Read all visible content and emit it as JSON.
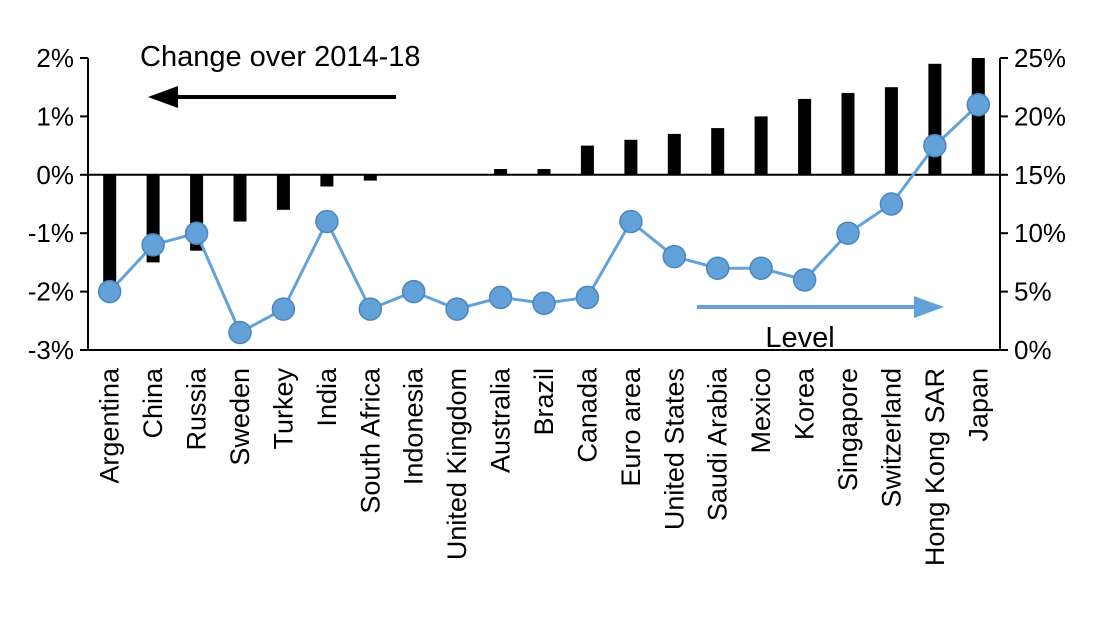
{
  "chart_data": {
    "type": "bar",
    "subtype": "combo-bar-line-dual-axis",
    "title": "",
    "categories": [
      "Argentina",
      "China",
      "Russia",
      "Sweden",
      "Turkey",
      "India",
      "South Africa",
      "Indonesia",
      "United Kingdom",
      "Australia",
      "Brazil",
      "Canada",
      "Euro area",
      "United States",
      "Saudi Arabia",
      "Mexico",
      "Korea",
      "Singapore",
      "Switzerland",
      "Hong Kong SAR",
      "Japan"
    ],
    "series": [
      {
        "name": "Change over 2014-18",
        "type": "bar",
        "axis": "left",
        "color": "#000000",
        "values": [
          -2.0,
          -1.5,
          -1.3,
          -0.8,
          -0.6,
          -0.2,
          -0.1,
          0.0,
          0.0,
          0.1,
          0.1,
          0.5,
          0.6,
          0.7,
          0.8,
          1.0,
          1.3,
          1.4,
          1.5,
          1.9,
          2.0
        ]
      },
      {
        "name": "Level",
        "type": "line",
        "axis": "right",
        "color": "#63a2d8",
        "marker_stroke": "#4a86c0",
        "values": [
          5,
          9,
          10,
          1.5,
          3.5,
          11,
          3.5,
          5,
          3.5,
          4.5,
          4,
          4.5,
          11,
          8,
          7,
          7,
          6,
          10,
          12.5,
          17.5,
          21
        ]
      }
    ],
    "left_axis": {
      "min": -3,
      "max": 2,
      "tick_values": [
        2,
        1,
        0,
        -1,
        -2,
        -3
      ],
      "tick_labels": [
        "2%",
        "1%",
        "0%",
        "-1%",
        "-2%",
        "-3%"
      ]
    },
    "right_axis": {
      "min": 0,
      "max": 25,
      "tick_values": [
        25,
        20,
        15,
        10,
        5,
        0
      ],
      "tick_labels": [
        "25%",
        "20%",
        "15%",
        "10%",
        "5%",
        "0%"
      ]
    },
    "annotations": [
      {
        "text": "Change over 2014-18",
        "arrow": "left",
        "color": "#000000"
      },
      {
        "text": "Level",
        "arrow": "right",
        "color": "#63a2d8"
      }
    ],
    "grid": false,
    "legend_position": "none"
  }
}
